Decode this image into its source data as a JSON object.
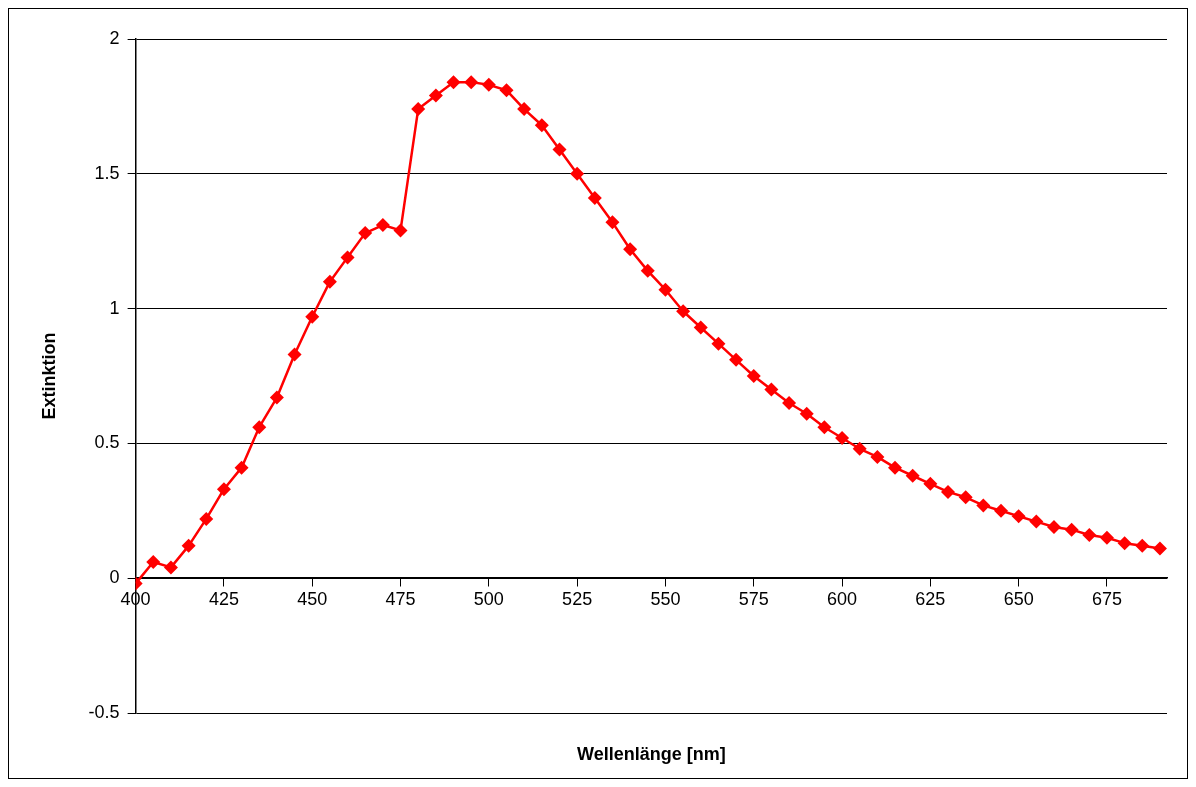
{
  "chart_data": {
    "type": "line",
    "xlabel": "Wellenlänge [nm]",
    "ylabel": "Extinktion",
    "x": [
      400,
      405,
      410,
      415,
      420,
      425,
      430,
      435,
      440,
      445,
      450,
      455,
      460,
      465,
      470,
      475,
      480,
      485,
      490,
      495,
      500,
      505,
      510,
      515,
      520,
      525,
      530,
      535,
      540,
      545,
      550,
      555,
      560,
      565,
      570,
      575,
      580,
      585,
      590,
      595,
      600,
      605,
      610,
      615,
      620,
      625,
      630,
      635,
      640,
      645,
      650,
      655,
      660,
      665,
      670,
      675,
      680,
      685,
      690
    ],
    "series": [
      {
        "color": "#ff0000",
        "values": [
          -0.02,
          0.06,
          0.04,
          0.12,
          0.22,
          0.33,
          0.41,
          0.56,
          0.67,
          0.83,
          0.97,
          1.1,
          1.19,
          1.28,
          1.31,
          1.29,
          1.74,
          1.79,
          1.84,
          1.84,
          1.83,
          1.81,
          1.74,
          1.68,
          1.59,
          1.5,
          1.41,
          1.32,
          1.22,
          1.14,
          1.07,
          0.99,
          0.93,
          0.87,
          0.81,
          0.75,
          0.7,
          0.65,
          0.61,
          0.56,
          0.52,
          0.48,
          0.45,
          0.41,
          0.38,
          0.35,
          0.32,
          0.3,
          0.27,
          0.25,
          0.23,
          0.21,
          0.19,
          0.18,
          0.16,
          0.15,
          0.13,
          0.12,
          0.11
        ]
      }
    ],
    "xlim": [
      400,
      692
    ],
    "xticks": [
      400,
      425,
      450,
      475,
      500,
      525,
      550,
      575,
      600,
      625,
      650,
      675
    ],
    "ylim": [
      -0.5,
      2
    ],
    "yticks": [
      -0.5,
      0,
      0.5,
      1,
      1.5,
      2
    ],
    "grid": "y",
    "legend": false,
    "marker": "diamond",
    "line_style": "solid"
  }
}
